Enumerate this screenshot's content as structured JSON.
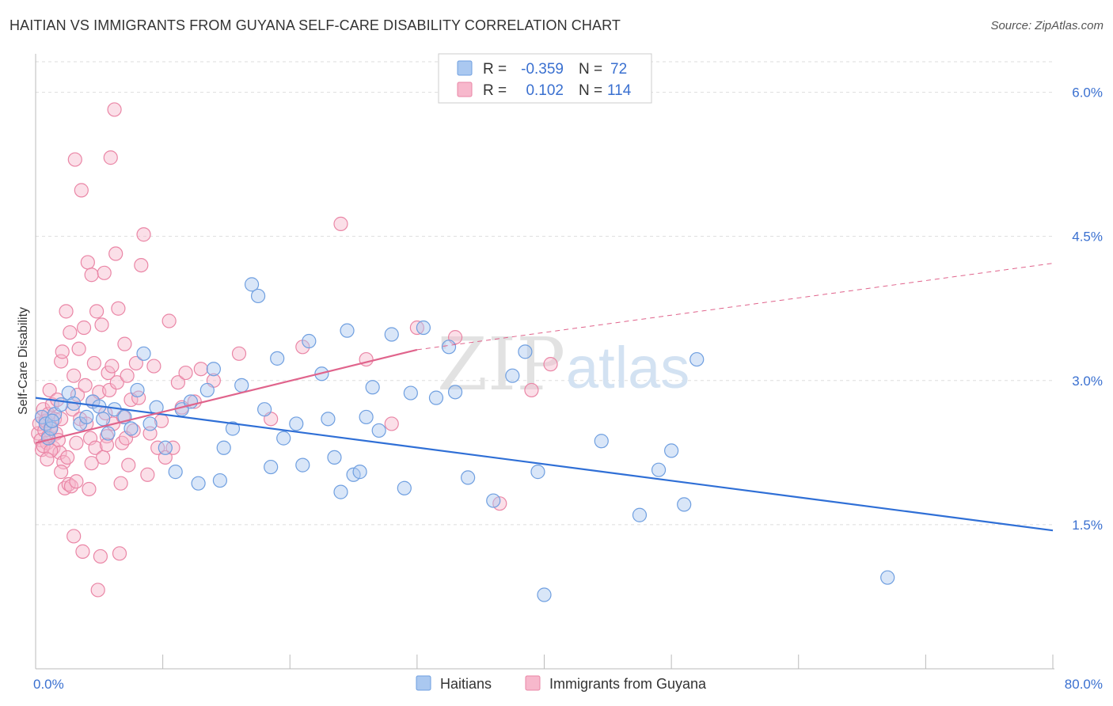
{
  "title": "HAITIAN VS IMMIGRANTS FROM GUYANA SELF-CARE DISABILITY CORRELATION CHART",
  "source": "Source: ZipAtlas.com",
  "watermark": {
    "zip": "ZIP",
    "atlas": "atlas"
  },
  "legend_top": {
    "rows": [
      {
        "r_label": "R =",
        "r_value": "-0.359",
        "n_label": "N =",
        "n_value": "72"
      },
      {
        "r_label": "R =",
        "r_value": "0.102",
        "n_label": "N =",
        "n_value": "114"
      }
    ]
  },
  "legend_bottom": {
    "items": [
      {
        "label": "Haitians"
      },
      {
        "label": "Immigrants from Guyana"
      }
    ]
  },
  "colors": {
    "blue_fill": "#aac8f0",
    "blue_stroke": "#6f9fe0",
    "blue_line": "#2f6fd6",
    "pink_fill": "#f7b8cc",
    "pink_stroke": "#ea86a6",
    "pink_line": "#e0648c",
    "value_text": "#3a70d0",
    "grid": "#dddddd"
  },
  "chart_data": {
    "type": "scatter",
    "title": "HAITIAN VS IMMIGRANTS FROM GUYANA SELF-CARE DISABILITY CORRELATION CHART",
    "xlabel": "",
    "ylabel": "Self-Care Disability",
    "xlim": [
      0,
      80
    ],
    "ylim": [
      0,
      6.4
    ],
    "x_tick_labels": [
      "0.0%",
      "80.0%"
    ],
    "y_ticks": [
      1.5,
      3.0,
      4.5,
      6.0
    ],
    "y_tick_labels": [
      "1.5%",
      "3.0%",
      "4.5%",
      "6.0%"
    ],
    "grid": true,
    "legend_position": "top-center",
    "series": [
      {
        "name": "Haitians",
        "r": -0.359,
        "n": 72,
        "trend": {
          "x": [
            0,
            80
          ],
          "y": [
            2.82,
            1.44
          ]
        },
        "points": [
          [
            0.5,
            2.62
          ],
          [
            0.8,
            2.55
          ],
          [
            1.0,
            2.4
          ],
          [
            1.2,
            2.5
          ],
          [
            1.5,
            2.65
          ],
          [
            2.0,
            2.75
          ],
          [
            2.6,
            2.87
          ],
          [
            3.0,
            2.76
          ],
          [
            3.5,
            2.55
          ],
          [
            4.0,
            2.62
          ],
          [
            4.5,
            2.78
          ],
          [
            5.0,
            2.73
          ],
          [
            5.3,
            2.6
          ],
          [
            5.7,
            2.45
          ],
          [
            6.2,
            2.7
          ],
          [
            7.0,
            2.62
          ],
          [
            7.5,
            2.5
          ],
          [
            8.0,
            2.9
          ],
          [
            8.5,
            3.28
          ],
          [
            9.0,
            2.55
          ],
          [
            9.5,
            2.72
          ],
          [
            10.2,
            2.3
          ],
          [
            11.0,
            2.05
          ],
          [
            11.5,
            2.7
          ],
          [
            12.2,
            2.78
          ],
          [
            12.8,
            1.93
          ],
          [
            13.5,
            2.9
          ],
          [
            14.0,
            3.12
          ],
          [
            14.5,
            1.96
          ],
          [
            14.8,
            2.3
          ],
          [
            15.5,
            2.5
          ],
          [
            16.2,
            2.95
          ],
          [
            17.0,
            4.0
          ],
          [
            17.5,
            3.88
          ],
          [
            18.0,
            2.7
          ],
          [
            18.5,
            2.1
          ],
          [
            19.0,
            3.23
          ],
          [
            19.5,
            2.4
          ],
          [
            20.5,
            2.55
          ],
          [
            21.0,
            2.12
          ],
          [
            21.5,
            3.41
          ],
          [
            22.5,
            3.07
          ],
          [
            23.0,
            2.6
          ],
          [
            23.5,
            2.2
          ],
          [
            24.0,
            1.84
          ],
          [
            24.5,
            3.52
          ],
          [
            25.0,
            2.02
          ],
          [
            25.5,
            2.05
          ],
          [
            26.0,
            2.62
          ],
          [
            26.5,
            2.93
          ],
          [
            27.0,
            2.48
          ],
          [
            28.0,
            3.48
          ],
          [
            29.0,
            1.88
          ],
          [
            29.5,
            2.87
          ],
          [
            30.5,
            3.55
          ],
          [
            31.5,
            2.82
          ],
          [
            32.5,
            3.35
          ],
          [
            33.0,
            2.88
          ],
          [
            34.0,
            1.99
          ],
          [
            36.0,
            1.75
          ],
          [
            37.5,
            3.05
          ],
          [
            38.5,
            3.3
          ],
          [
            39.5,
            2.05
          ],
          [
            40.0,
            0.77
          ],
          [
            44.5,
            2.37
          ],
          [
            47.5,
            1.6
          ],
          [
            49.0,
            2.07
          ],
          [
            50.0,
            2.27
          ],
          [
            51.0,
            1.71
          ],
          [
            52.0,
            3.22
          ],
          [
            67.0,
            0.95
          ],
          [
            1.3,
            2.58
          ]
        ]
      },
      {
        "name": "Immigrants from Guyana",
        "r": 0.102,
        "n": 114,
        "trend": {
          "x": [
            0,
            30
          ],
          "y": [
            2.35,
            3.32
          ]
        },
        "trend_dashed": {
          "x": [
            30,
            80
          ],
          "y": [
            3.32,
            4.22
          ]
        },
        "points": [
          [
            0.2,
            2.45
          ],
          [
            0.3,
            2.55
          ],
          [
            0.4,
            2.38
          ],
          [
            0.5,
            2.62
          ],
          [
            0.5,
            2.28
          ],
          [
            0.6,
            2.7
          ],
          [
            0.7,
            2.48
          ],
          [
            0.8,
            2.58
          ],
          [
            0.9,
            2.35
          ],
          [
            1.0,
            2.65
          ],
          [
            1.0,
            2.42
          ],
          [
            1.1,
            2.9
          ],
          [
            1.2,
            2.52
          ],
          [
            1.3,
            2.75
          ],
          [
            1.4,
            2.3
          ],
          [
            1.5,
            2.6
          ],
          [
            1.6,
            2.45
          ],
          [
            1.7,
            2.8
          ],
          [
            1.8,
            2.38
          ],
          [
            1.9,
            2.25
          ],
          [
            2.0,
            2.6
          ],
          [
            2.0,
            3.2
          ],
          [
            2.1,
            3.3
          ],
          [
            2.2,
            2.15
          ],
          [
            2.3,
            1.88
          ],
          [
            2.4,
            3.72
          ],
          [
            2.5,
            2.2
          ],
          [
            2.6,
            1.92
          ],
          [
            2.7,
            3.5
          ],
          [
            2.8,
            1.9
          ],
          [
            2.9,
            2.7
          ],
          [
            3.0,
            3.05
          ],
          [
            3.0,
            1.38
          ],
          [
            3.1,
            5.3
          ],
          [
            3.2,
            2.35
          ],
          [
            3.3,
            2.85
          ],
          [
            3.4,
            3.33
          ],
          [
            3.5,
            2.6
          ],
          [
            3.6,
            4.98
          ],
          [
            3.7,
            1.22
          ],
          [
            3.8,
            3.55
          ],
          [
            3.9,
            2.95
          ],
          [
            4.0,
            2.55
          ],
          [
            4.1,
            4.23
          ],
          [
            4.2,
            1.87
          ],
          [
            4.3,
            2.4
          ],
          [
            4.4,
            4.1
          ],
          [
            4.5,
            2.78
          ],
          [
            4.6,
            3.18
          ],
          [
            4.7,
            2.3
          ],
          [
            4.8,
            3.72
          ],
          [
            4.9,
            0.82
          ],
          [
            5.0,
            2.88
          ],
          [
            5.1,
            1.17
          ],
          [
            5.2,
            3.58
          ],
          [
            5.3,
            2.2
          ],
          [
            5.4,
            4.12
          ],
          [
            5.5,
            2.66
          ],
          [
            5.6,
            2.42
          ],
          [
            5.7,
            3.08
          ],
          [
            5.8,
            2.9
          ],
          [
            5.9,
            5.32
          ],
          [
            6.0,
            3.15
          ],
          [
            6.1,
            2.55
          ],
          [
            6.2,
            5.82
          ],
          [
            6.3,
            4.32
          ],
          [
            6.4,
            2.98
          ],
          [
            6.5,
            3.75
          ],
          [
            6.6,
            1.2
          ],
          [
            6.7,
            1.93
          ],
          [
            6.8,
            2.35
          ],
          [
            6.9,
            2.62
          ],
          [
            7.0,
            3.38
          ],
          [
            7.1,
            2.4
          ],
          [
            7.2,
            3.05
          ],
          [
            7.3,
            2.12
          ],
          [
            7.5,
            2.8
          ],
          [
            7.7,
            2.48
          ],
          [
            7.9,
            3.18
          ],
          [
            8.1,
            2.82
          ],
          [
            8.3,
            4.2
          ],
          [
            8.5,
            4.52
          ],
          [
            8.8,
            2.02
          ],
          [
            9.0,
            2.45
          ],
          [
            9.3,
            3.15
          ],
          [
            9.6,
            2.3
          ],
          [
            9.9,
            2.58
          ],
          [
            10.2,
            2.2
          ],
          [
            10.5,
            3.62
          ],
          [
            10.8,
            2.3
          ],
          [
            11.2,
            2.98
          ],
          [
            11.5,
            2.72
          ],
          [
            11.8,
            3.08
          ],
          [
            12.5,
            2.78
          ],
          [
            13.0,
            3.12
          ],
          [
            14.0,
            3.0
          ],
          [
            16.0,
            3.28
          ],
          [
            18.5,
            2.6
          ],
          [
            21.0,
            3.35
          ],
          [
            24.0,
            4.63
          ],
          [
            26.0,
            3.22
          ],
          [
            28.0,
            2.55
          ],
          [
            30.0,
            3.55
          ],
          [
            33.0,
            3.45
          ],
          [
            36.5,
            1.72
          ],
          [
            39.0,
            2.9
          ],
          [
            40.5,
            3.17
          ],
          [
            0.6,
            2.32
          ],
          [
            1.2,
            2.27
          ],
          [
            2.0,
            2.05
          ],
          [
            3.2,
            1.95
          ],
          [
            4.4,
            2.14
          ],
          [
            5.6,
            2.33
          ],
          [
            0.9,
            2.18
          ]
        ]
      }
    ]
  }
}
